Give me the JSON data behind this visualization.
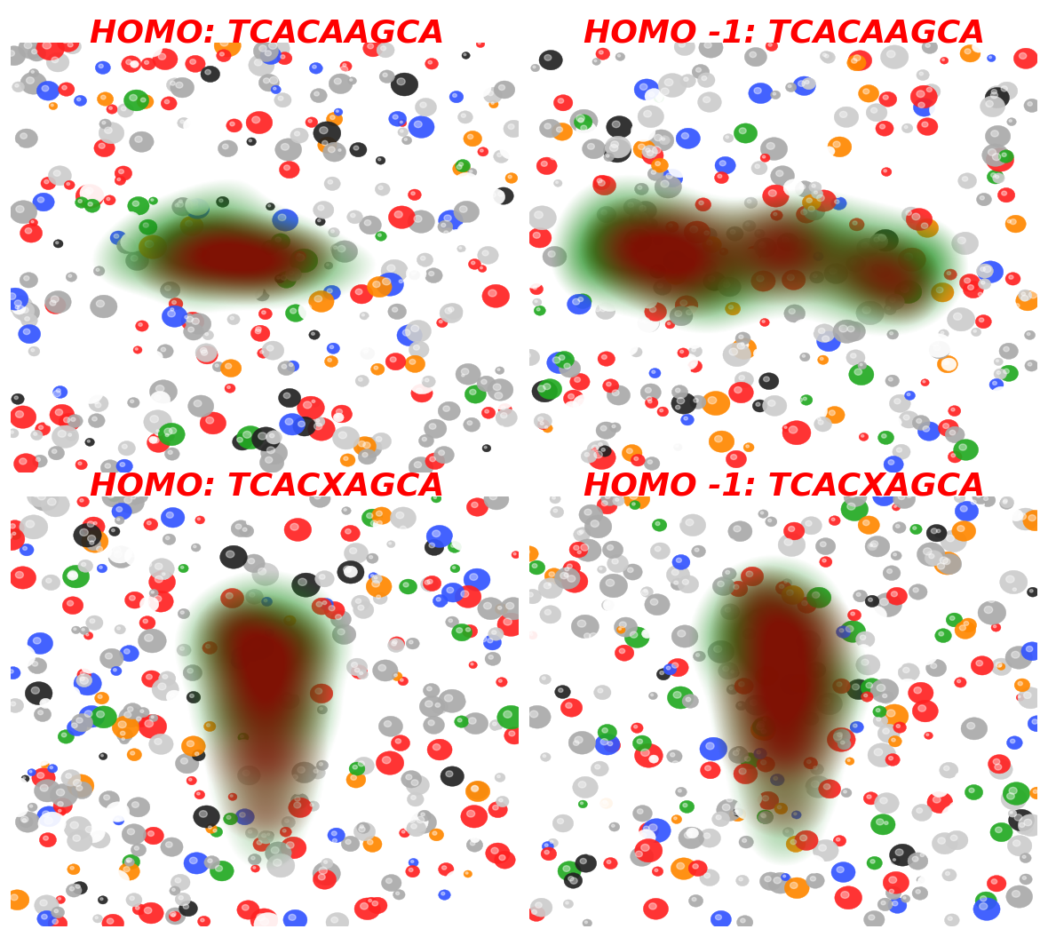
{
  "background_color": "#FFFFFF",
  "panel_bg_color": "#8080BF",
  "labels": [
    "HOMO: TCACAAGCA",
    "HOMO -1: TCACAAGCA",
    "HOMO: TCACXAGCA",
    "HOMO -1: TCACXAGCA"
  ],
  "label_color": "#FF0000",
  "label_fontsize": 26,
  "label_fontweight": "bold",
  "figsize": [
    11.8,
    10.64
  ],
  "dpi": 100,
  "atom_colors": [
    "#FFFFFF",
    "#FF2222",
    "#3355FF",
    "#FF8800",
    "#22AA22",
    "#AAAAAA",
    "#CCCCCC",
    "#222222"
  ],
  "green_orbital": "#1E7A1E",
  "darkred_orbital": "#8B0000"
}
